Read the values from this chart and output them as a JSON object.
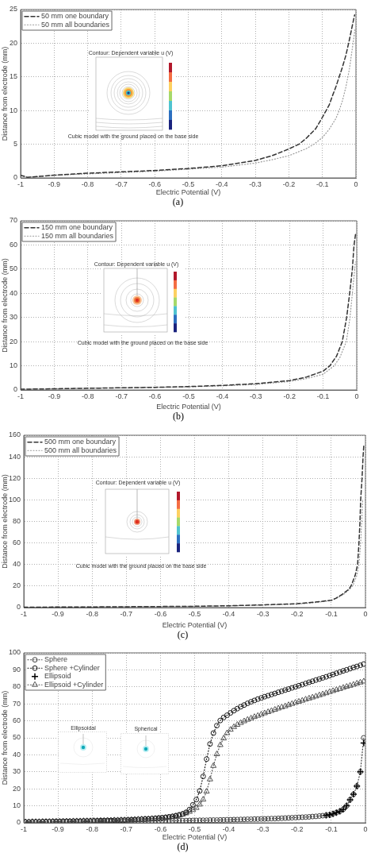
{
  "chart_data": [
    {
      "type": "line",
      "title": "(a)",
      "xlabel": "Electric Potential (V)",
      "ylabel": "Distance from electrode (mm)",
      "xlim": [
        -1,
        0
      ],
      "xticks": [
        -1,
        -0.9,
        -0.8,
        -0.7,
        -0.6,
        -0.5,
        -0.4,
        -0.3,
        -0.2,
        -0.1,
        0
      ],
      "ylim": [
        0,
        25
      ],
      "yticks": [
        0,
        5,
        10,
        15,
        20,
        25
      ],
      "grid": true,
      "legend": "top left",
      "annotations": [
        "Contour: Dependent variable u (V)",
        "Cubic model with the ground placed on the base side"
      ],
      "series": [
        {
          "name": "50 mm one boundary",
          "color": "#333333",
          "line_style": "dashed",
          "x": [
            -1,
            -0.98,
            -0.95,
            -0.9,
            -0.8,
            -0.7,
            -0.6,
            -0.5,
            -0.4,
            -0.3,
            -0.25,
            -0.2,
            -0.17,
            -0.15,
            -0.12,
            -0.1,
            -0.09,
            -0.08,
            -0.07,
            -0.06,
            -0.05,
            -0.04,
            -0.03,
            -0.02,
            -0.01,
            -0.004
          ],
          "values": [
            0.4,
            0.1,
            0.2,
            0.4,
            0.7,
            0.9,
            1.1,
            1.4,
            1.8,
            2.6,
            3.3,
            4.3,
            5,
            5.8,
            7.3,
            9,
            9.9,
            10.8,
            12.2,
            13.5,
            15,
            16.5,
            18.2,
            20.4,
            22.8,
            24.2
          ]
        },
        {
          "name": "50 mm all boundaries",
          "color": "#999999",
          "line_style": "dotted",
          "x": [
            -1,
            -0.98,
            -0.95,
            -0.9,
            -0.8,
            -0.7,
            -0.6,
            -0.5,
            -0.4,
            -0.3,
            -0.25,
            -0.2,
            -0.15,
            -0.125,
            -0.1,
            -0.08,
            -0.06,
            -0.05,
            -0.04,
            -0.03,
            -0.02,
            -0.01,
            -0.003
          ],
          "values": [
            0.4,
            0.1,
            0.2,
            0.4,
            0.6,
            0.8,
            1,
            1.3,
            1.6,
            2.2,
            2.7,
            3.3,
            4.3,
            5,
            6,
            7.2,
            8.8,
            10,
            11.5,
            13.5,
            16,
            19.5,
            22
          ]
        }
      ]
    },
    {
      "type": "line",
      "title": "(b)",
      "xlabel": "Electric Potential (V)",
      "ylabel": "Distance from electrode (mm)",
      "xlim": [
        -1,
        0
      ],
      "xticks": [
        -1,
        -0.9,
        -0.8,
        -0.7,
        -0.6,
        -0.5,
        -0.4,
        -0.3,
        -0.2,
        -0.1,
        0
      ],
      "ylim": [
        0,
        70
      ],
      "yticks": [
        0,
        10,
        20,
        30,
        40,
        50,
        60,
        70
      ],
      "grid": true,
      "legend": "top left",
      "annotations": [
        "Contour: Dependent variable u (V)",
        "Cubic model with the ground placed on the base side"
      ],
      "series": [
        {
          "name": "150 mm one boundary",
          "color": "#333333",
          "line_style": "dashed",
          "x": [
            -1,
            -0.9,
            -0.8,
            -0.7,
            -0.6,
            -0.5,
            -0.4,
            -0.3,
            -0.2,
            -0.15,
            -0.1,
            -0.08,
            -0.06,
            -0.043,
            -0.03,
            -0.021,
            -0.013,
            -0.008,
            -0.003
          ],
          "values": [
            0.3,
            0.5,
            0.7,
            0.9,
            1.1,
            1.4,
            1.9,
            2.6,
            3.9,
            5.3,
            7.8,
            10,
            14,
            20,
            30,
            40,
            50,
            60,
            65
          ]
        },
        {
          "name": "150 mm all boundaries",
          "color": "#999999",
          "line_style": "dotted",
          "x": [
            -1,
            -0.9,
            -0.8,
            -0.7,
            -0.6,
            -0.5,
            -0.4,
            -0.3,
            -0.2,
            -0.15,
            -0.1,
            -0.067,
            -0.05,
            -0.031,
            -0.02,
            -0.013,
            -0.006,
            -0.004
          ],
          "values": [
            0.3,
            0.5,
            0.7,
            0.9,
            1.1,
            1.3,
            1.7,
            2.3,
            3.5,
            4.7,
            6.5,
            10,
            13.5,
            20,
            30,
            40,
            50,
            53
          ]
        }
      ]
    },
    {
      "type": "line",
      "title": "(c)",
      "xlabel": "Electric Potential (V)",
      "ylabel": "Distance from electrode (mm)",
      "xlim": [
        -1,
        0
      ],
      "xticks": [
        -1,
        -0.9,
        -0.8,
        -0.7,
        -0.6,
        -0.5,
        -0.4,
        -0.3,
        -0.2,
        -0.1,
        0
      ],
      "ylim": [
        0,
        160
      ],
      "yticks": [
        0,
        20,
        40,
        60,
        80,
        100,
        120,
        140,
        160
      ],
      "grid": true,
      "legend": "top left",
      "annotations": [
        "Contour: Dependent variable u (V)",
        "Cubic model with the ground placed on the base side"
      ],
      "series": [
        {
          "name": "500 mm one boundary",
          "color": "#333333",
          "line_style": "dashed",
          "x": [
            -1,
            -0.9,
            -0.8,
            -0.7,
            -0.6,
            -0.5,
            -0.4,
            -0.3,
            -0.2,
            -0.15,
            -0.1,
            -0.087,
            -0.068,
            -0.048,
            -0.041,
            -0.03,
            -0.023,
            -0.019,
            -0.016,
            -0.014,
            -0.01,
            -0.007,
            -0.005
          ],
          "values": [
            0.3,
            0.5,
            0.6,
            0.8,
            1,
            1.2,
            1.7,
            2.5,
            3.6,
            5,
            6.8,
            8.6,
            12.3,
            17.2,
            20.9,
            30,
            40,
            60,
            80,
            100,
            120,
            140,
            150
          ]
        },
        {
          "name": "500 mm all boundaries",
          "color": "#999999",
          "line_style": "dotted",
          "x": [
            -1,
            -0.9,
            -0.8,
            -0.7,
            -0.6,
            -0.5,
            -0.4,
            -0.3,
            -0.2,
            -0.15,
            -0.1,
            -0.085,
            -0.065,
            -0.046,
            -0.036,
            -0.025,
            -0.019,
            -0.014,
            -0.011,
            -0.008
          ],
          "values": [
            0.3,
            0.5,
            0.6,
            0.8,
            1,
            1.2,
            1.6,
            2.3,
            3.3,
            4.5,
            6.5,
            8.5,
            12,
            17,
            21,
            30,
            40,
            60,
            80,
            100
          ]
        }
      ]
    },
    {
      "type": "line",
      "title": "(d)",
      "xlabel": "Electric Potential (V)",
      "ylabel": "Distance from electrode (mm)",
      "xlim": [
        -1,
        0
      ],
      "xticks": [
        -1,
        -0.9,
        -0.8,
        -0.7,
        -0.6,
        -0.5,
        -0.4,
        -0.3,
        -0.2,
        -0.1,
        0
      ],
      "ylim": [
        0,
        100
      ],
      "yticks": [
        0,
        10,
        20,
        30,
        40,
        50,
        60,
        70,
        80,
        90,
        100
      ],
      "grid": true,
      "legend": "top left",
      "annotations": [
        "Ellipsoidal",
        "Spherical"
      ],
      "x": [
        -0.995,
        -0.985,
        -0.975,
        -0.965,
        -0.955,
        -0.945,
        -0.935,
        -0.925,
        -0.915,
        -0.905,
        -0.895,
        -0.885,
        -0.875,
        -0.865,
        -0.855,
        -0.845,
        -0.835,
        -0.825,
        -0.815,
        -0.805,
        -0.795,
        -0.785,
        -0.775,
        -0.765,
        -0.755,
        -0.745,
        -0.735,
        -0.725,
        -0.715,
        -0.705,
        -0.695,
        -0.685,
        -0.675,
        -0.665,
        -0.655,
        -0.645,
        -0.635,
        -0.625,
        -0.615,
        -0.605,
        -0.595,
        -0.585,
        -0.575,
        -0.565,
        -0.555,
        -0.545,
        -0.535,
        -0.525,
        -0.515,
        -0.505,
        -0.495,
        -0.485,
        -0.475,
        -0.465,
        -0.455,
        -0.445,
        -0.435,
        -0.425,
        -0.415,
        -0.405,
        -0.395,
        -0.385,
        -0.375,
        -0.365,
        -0.355,
        -0.345,
        -0.335,
        -0.325,
        -0.315,
        -0.305,
        -0.295,
        -0.285,
        -0.275,
        -0.265,
        -0.255,
        -0.245,
        -0.235,
        -0.225,
        -0.215,
        -0.205,
        -0.195,
        -0.185,
        -0.175,
        -0.165,
        -0.155,
        -0.145,
        -0.135,
        -0.125,
        -0.115,
        -0.105,
        -0.095,
        -0.085,
        -0.075,
        -0.065,
        -0.055,
        -0.045,
        -0.035,
        -0.025,
        -0.015,
        -0.005
      ],
      "series": [
        {
          "name": "Sphere",
          "color": "#444444",
          "line_style": "dotted",
          "marker": "circle",
          "values": [
            0.3,
            0.3,
            0.3,
            0.4,
            0.4,
            0.4,
            0.4,
            0.5,
            0.5,
            0.5,
            0.5,
            0.5,
            0.6,
            0.6,
            0.6,
            0.6,
            0.6,
            0.7,
            0.7,
            0.7,
            0.7,
            0.7,
            0.8,
            0.8,
            0.8,
            0.8,
            0.8,
            0.9,
            0.9,
            0.9,
            0.9,
            1,
            1,
            1,
            1,
            1,
            1.1,
            1.1,
            1.1,
            1.1,
            1.2,
            1.2,
            1.2,
            1.2,
            1.3,
            1.3,
            1.3,
            1.3,
            1.4,
            1.4,
            1.4,
            1.5,
            1.5,
            1.5,
            1.6,
            1.6,
            1.6,
            1.7,
            1.7,
            1.8,
            1.8,
            1.9,
            1.9,
            2,
            2,
            2.1,
            2.1,
            2.2,
            2.2,
            2.3,
            2.3,
            2.4,
            2.5,
            2.5,
            2.6,
            2.7,
            2.8,
            2.9,
            3,
            3.1,
            3.2,
            3.3,
            3.4,
            3.5,
            3.7,
            3.8,
            4,
            4.2,
            4.4,
            4.7,
            5.3,
            6,
            6.8,
            8,
            10,
            13.6,
            16.8,
            21.6,
            30,
            50
          ]
        },
        {
          "name": "Sphere +Cylinder",
          "color": "#1a1a1a",
          "line_style": "dotted",
          "marker": "circle",
          "values": [
            0.5,
            0.5,
            0.6,
            0.6,
            0.6,
            0.7,
            0.7,
            0.7,
            0.8,
            0.8,
            0.8,
            0.9,
            0.9,
            0.9,
            1,
            1,
            1,
            1.1,
            1.1,
            1.1,
            1.2,
            1.2,
            1.3,
            1.3,
            1.4,
            1.4,
            1.5,
            1.5,
            1.6,
            1.6,
            1.7,
            1.8,
            1.9,
            2,
            2.1,
            2.2,
            2.3,
            2.5,
            2.6,
            2.8,
            3,
            3.2,
            3.5,
            3.8,
            4.2,
            4.7,
            5.3,
            6.2,
            7.8,
            10.6,
            13.7,
            18.8,
            27.3,
            37.5,
            46.4,
            52.8,
            57.2,
            60.2,
            62,
            63.3,
            64.7,
            66,
            67.2,
            68.3,
            69.3,
            70.3,
            71.2,
            72,
            72.8,
            73.5,
            74.2,
            74.8,
            75.5,
            76.1,
            76.8,
            77.4,
            78.1,
            78.7,
            79.4,
            80,
            80.7,
            81.3,
            82,
            82.7,
            83.3,
            84,
            84.6,
            85.3,
            85.9,
            86.6,
            87.3,
            88,
            88.7,
            89.4,
            90,
            90.7,
            91.4,
            92,
            92.7,
            93.4
          ]
        },
        {
          "name": "Ellipsoid",
          "color": "#000000",
          "type": "scatter",
          "marker": "cross",
          "x": [
            -0.115,
            -0.105,
            -0.095,
            -0.085,
            -0.075,
            -0.065,
            -0.055,
            -0.045,
            -0.035,
            -0.025,
            -0.015,
            -0.005
          ],
          "values": [
            4.4,
            4.7,
            5.3,
            6,
            6.8,
            8,
            10,
            13.6,
            16.8,
            21.6,
            30,
            47
          ]
        },
        {
          "name": "Ellipsoid +Cylinder",
          "color": "#555555",
          "line_style": "dotted",
          "marker": "triangle",
          "values": [
            0.5,
            0.5,
            0.6,
            0.6,
            0.6,
            0.7,
            0.7,
            0.7,
            0.8,
            0.8,
            0.8,
            0.9,
            0.9,
            0.9,
            1,
            1,
            1,
            1.1,
            1.1,
            1.1,
            1.2,
            1.2,
            1.3,
            1.3,
            1.4,
            1.4,
            1.5,
            1.5,
            1.6,
            1.6,
            1.7,
            1.8,
            1.9,
            2,
            2.1,
            2.2,
            2.3,
            2.4,
            2.5,
            2.6,
            2.8,
            3,
            3.2,
            3.5,
            3.9,
            4.3,
            4.9,
            5.6,
            6.5,
            7.6,
            8.8,
            10.8,
            13.7,
            18.4,
            25.6,
            33.5,
            40.4,
            45.8,
            49.7,
            52.8,
            54.8,
            56.4,
            57.7,
            58.8,
            59.8,
            60.7,
            61.5,
            62.3,
            63,
            63.8,
            64.5,
            65.2,
            65.9,
            66.6,
            67.3,
            68,
            68.6,
            69.3,
            70,
            70.7,
            71.3,
            71.9,
            72.6,
            73.2,
            73.8,
            74.4,
            75.1,
            75.7,
            76.3,
            77,
            77.6,
            78.2,
            78.8,
            79.5,
            80.1,
            80.7,
            81.3,
            82,
            82.6,
            83.2
          ]
        }
      ]
    }
  ]
}
